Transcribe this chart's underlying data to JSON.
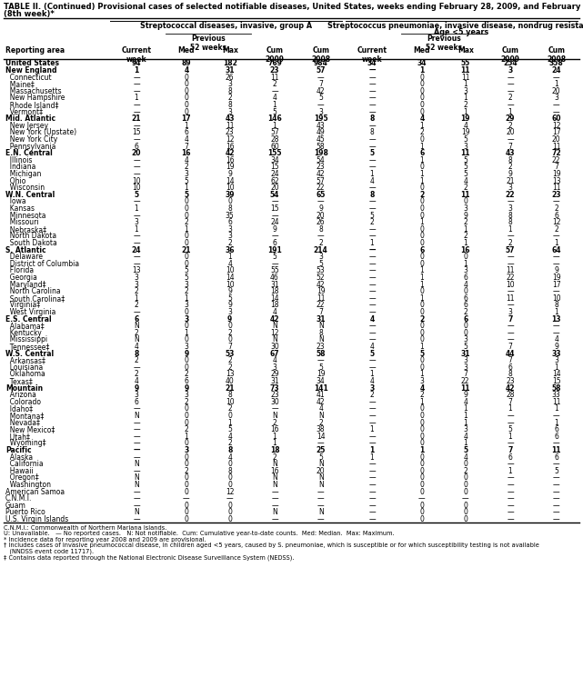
{
  "title_line1": "TABLE II. (Continued) Provisional cases of selected notifiable diseases, United States, weeks ending February 28, 2009, and February 23, 2008",
  "title_line2": "(8th week)*",
  "col_group1": "Streptococcal diseases, invasive, group A",
  "col_group2_line1": "Streptococcus pneumoniae, invasive disease, nondrug resistant†",
  "col_group2_line2": "Age <5 years",
  "footnote1": "C.N.M.I.: Commonwealth of Northern Mariana Islands.",
  "footnote2": "U: Unavailable.   — No reported cases.   N: Not notifiable.  Cum: Cumulative year-to-date counts.  Med: Median.  Max: Maximum.",
  "footnote3": "* Incidence data for reporting year 2008 and 2009 are provisional.",
  "footnote4a": "† Includes cases of invasive pneumococcal disease, in children aged <5 years, caused by S. pneumoniae, which is susceptible or for which susceptibility testing is not available",
  "footnote4b": "   (NNDSS event code 11717).",
  "footnote5": "‡ Contains data reported through the National Electronic Disease Surveillance System (NEDSS).",
  "rows": [
    [
      "United States",
      "94",
      "89",
      "182",
      "769",
      "984",
      "34",
      "34",
      "55",
      "254",
      "358"
    ],
    [
      "New England",
      "1",
      "4",
      "31",
      "23",
      "57",
      "—",
      "1",
      "11",
      "3",
      "24"
    ],
    [
      "  Connecticut",
      "—",
      "0",
      "26",
      "11",
      "—",
      "—",
      "0",
      "11",
      "—",
      "—"
    ],
    [
      "  Maine‡",
      "—",
      "0",
      "3",
      "2",
      "7",
      "—",
      "0",
      "1",
      "—",
      "1"
    ],
    [
      "  Massachusetts",
      "—",
      "0",
      "8",
      "—",
      "42",
      "—",
      "0",
      "3",
      "—",
      "20"
    ],
    [
      "  New Hampshire",
      "1",
      "0",
      "2",
      "4",
      "5",
      "—",
      "0",
      "1",
      "2",
      "3"
    ],
    [
      "  Rhode Island‡",
      "—",
      "0",
      "8",
      "1",
      "—",
      "—",
      "0",
      "2",
      "—",
      "—"
    ],
    [
      "  Vermont‡",
      "—",
      "0",
      "3",
      "5",
      "3",
      "—",
      "0",
      "1",
      "1",
      "—"
    ],
    [
      "Mid. Atlantic",
      "21",
      "17",
      "43",
      "146",
      "195",
      "8",
      "4",
      "19",
      "29",
      "60"
    ],
    [
      "  New Jersey",
      "—",
      "1",
      "11",
      "1",
      "43",
      "—",
      "1",
      "4",
      "2",
      "12"
    ],
    [
      "  New York (Upstate)",
      "15",
      "6",
      "23",
      "57",
      "49",
      "8",
      "2",
      "19",
      "20",
      "17"
    ],
    [
      "  New York City",
      "—",
      "4",
      "12",
      "28",
      "45",
      "—",
      "0",
      "5",
      "—",
      "20"
    ],
    [
      "  Pennsylvania",
      "6",
      "7",
      "16",
      "60",
      "58",
      "—",
      "1",
      "3",
      "7",
      "11"
    ],
    [
      "E.N. Central",
      "20",
      "16",
      "42",
      "155",
      "198",
      "5",
      "6",
      "11",
      "43",
      "72"
    ],
    [
      "  Illinois",
      "—",
      "4",
      "16",
      "34",
      "54",
      "—",
      "1",
      "5",
      "8",
      "22"
    ],
    [
      "  Indiana",
      "—",
      "2",
      "19",
      "15",
      "23",
      "—",
      "0",
      "5",
      "2",
      "7"
    ],
    [
      "  Michigan",
      "—",
      "3",
      "9",
      "24",
      "42",
      "1",
      "1",
      "5",
      "9",
      "19"
    ],
    [
      "  Ohio",
      "10",
      "5",
      "14",
      "62",
      "57",
      "4",
      "1",
      "4",
      "21",
      "13"
    ],
    [
      "  Wisconsin",
      "10",
      "1",
      "10",
      "20",
      "22",
      "—",
      "0",
      "2",
      "3",
      "11"
    ],
    [
      "W.N. Central",
      "5",
      "5",
      "39",
      "54",
      "65",
      "8",
      "2",
      "11",
      "22",
      "23"
    ],
    [
      "  Iowa",
      "—",
      "0",
      "0",
      "—",
      "—",
      "—",
      "0",
      "0",
      "—",
      "—"
    ],
    [
      "  Kansas",
      "1",
      "0",
      "8",
      "15",
      "9",
      "—",
      "0",
      "3",
      "3",
      "2"
    ],
    [
      "  Minnesota",
      "—",
      "0",
      "35",
      "—",
      "20",
      "5",
      "0",
      "9",
      "8",
      "6"
    ],
    [
      "  Missouri",
      "3",
      "2",
      "6",
      "24",
      "26",
      "2",
      "1",
      "2",
      "8",
      "12"
    ],
    [
      "  Nebraska‡",
      "1",
      "1",
      "3",
      "9",
      "8",
      "—",
      "0",
      "1",
      "1",
      "2"
    ],
    [
      "  North Dakota",
      "—",
      "0",
      "3",
      "—",
      "—",
      "—",
      "0",
      "2",
      "—",
      "—"
    ],
    [
      "  South Dakota",
      "—",
      "0",
      "2",
      "6",
      "2",
      "1",
      "0",
      "1",
      "2",
      "1"
    ],
    [
      "S. Atlantic",
      "24",
      "21",
      "36",
      "191",
      "214",
      "—",
      "6",
      "16",
      "57",
      "64"
    ],
    [
      "  Delaware",
      "—",
      "0",
      "1",
      "5",
      "3",
      "—",
      "0",
      "0",
      "—",
      "—"
    ],
    [
      "  District of Columbia",
      "—",
      "0",
      "4",
      "—",
      "5",
      "—",
      "0",
      "1",
      "—",
      "—"
    ],
    [
      "  Florida",
      "13",
      "5",
      "10",
      "55",
      "53",
      "—",
      "1",
      "3",
      "11",
      "9"
    ],
    [
      "  Georgia",
      "3",
      "5",
      "14",
      "46",
      "52",
      "—",
      "1",
      "6",
      "22",
      "19"
    ],
    [
      "  Maryland‡",
      "3",
      "3",
      "10",
      "31",
      "42",
      "—",
      "1",
      "4",
      "10",
      "17"
    ],
    [
      "  North Carolina",
      "2",
      "2",
      "9",
      "18",
      "19",
      "—",
      "0",
      "0",
      "—",
      "—"
    ],
    [
      "  South Carolina‡",
      "1",
      "1",
      "5",
      "14",
      "11",
      "—",
      "1",
      "6",
      "11",
      "10"
    ],
    [
      "  Virginia‡",
      "2",
      "3",
      "9",
      "18",
      "22",
      "—",
      "0",
      "6",
      "—",
      "8"
    ],
    [
      "  West Virginia",
      "—",
      "0",
      "3",
      "4",
      "7",
      "—",
      "0",
      "2",
      "3",
      "1"
    ],
    [
      "E.S. Central",
      "6",
      "3",
      "9",
      "42",
      "31",
      "4",
      "2",
      "6",
      "7",
      "13"
    ],
    [
      "  Alabama‡",
      "N",
      "0",
      "0",
      "N",
      "N",
      "—",
      "0",
      "0",
      "—",
      "—"
    ],
    [
      "  Kentucky",
      "2",
      "1",
      "2",
      "12",
      "8",
      "—",
      "0",
      "0",
      "—",
      "—"
    ],
    [
      "  Mississippi",
      "N",
      "0",
      "0",
      "N",
      "N",
      "—",
      "0",
      "3",
      "—",
      "4"
    ],
    [
      "  Tennessee‡",
      "4",
      "3",
      "7",
      "30",
      "23",
      "4",
      "1",
      "5",
      "7",
      "9"
    ],
    [
      "W.S. Central",
      "8",
      "9",
      "53",
      "67",
      "58",
      "5",
      "5",
      "31",
      "44",
      "33"
    ],
    [
      "  Arkansas‡",
      "2",
      "0",
      "2",
      "4",
      "—",
      "—",
      "0",
      "3",
      "7",
      "3"
    ],
    [
      "  Louisiana",
      "—",
      "0",
      "2",
      "3",
      "5",
      "—",
      "0",
      "3",
      "6",
      "1"
    ],
    [
      "  Oklahoma",
      "2",
      "2",
      "13",
      "29",
      "19",
      "1",
      "1",
      "7",
      "8",
      "14"
    ],
    [
      "  Texas‡",
      "4",
      "6",
      "40",
      "31",
      "34",
      "4",
      "3",
      "22",
      "23",
      "15"
    ],
    [
      "Mountain",
      "9",
      "9",
      "21",
      "73",
      "141",
      "3",
      "4",
      "11",
      "42",
      "58"
    ],
    [
      "  Arizona",
      "3",
      "3",
      "8",
      "23",
      "41",
      "2",
      "2",
      "9",
      "28",
      "33"
    ],
    [
      "  Colorado",
      "6",
      "2",
      "10",
      "30",
      "42",
      "—",
      "1",
      "4",
      "7",
      "11"
    ],
    [
      "  Idaho‡",
      "—",
      "0",
      "2",
      "—",
      "4",
      "—",
      "0",
      "1",
      "1",
      "1"
    ],
    [
      "  Montana‡",
      "N",
      "0",
      "0",
      "N",
      "N",
      "—",
      "0",
      "1",
      "—",
      "—"
    ],
    [
      "  Nevada‡",
      "—",
      "0",
      "1",
      "2",
      "2",
      "—",
      "0",
      "1",
      "—",
      "1"
    ],
    [
      "  New Mexico‡",
      "—",
      "2",
      "5",
      "16",
      "38",
      "1",
      "0",
      "3",
      "5",
      "6"
    ],
    [
      "  Utah‡",
      "—",
      "1",
      "4",
      "1",
      "14",
      "—",
      "0",
      "4",
      "1",
      "6"
    ],
    [
      "  Wyoming‡",
      "—",
      "0",
      "2",
      "1",
      "—",
      "—",
      "0",
      "1",
      "—",
      "—"
    ],
    [
      "Pacific",
      "—",
      "3",
      "8",
      "18",
      "25",
      "1",
      "1",
      "5",
      "7",
      "11"
    ],
    [
      "  Alaska",
      "—",
      "0",
      "4",
      "2",
      "5",
      "1",
      "0",
      "4",
      "6",
      "6"
    ],
    [
      "  California",
      "N",
      "0",
      "0",
      "N",
      "N",
      "—",
      "0",
      "0",
      "—",
      "—"
    ],
    [
      "  Hawaii",
      "—",
      "2",
      "8",
      "16",
      "20",
      "—",
      "0",
      "2",
      "1",
      "5"
    ],
    [
      "  Oregon‡",
      "N",
      "0",
      "0",
      "N",
      "N",
      "—",
      "0",
      "0",
      "—",
      "—"
    ],
    [
      "  Washington",
      "N",
      "0",
      "0",
      "N",
      "N",
      "—",
      "0",
      "0",
      "—",
      "—"
    ],
    [
      "American Samoa",
      "—",
      "0",
      "12",
      "—",
      "—",
      "—",
      "0",
      "0",
      "—",
      "—"
    ],
    [
      "C.N.M.I.",
      "—",
      "—",
      "—",
      "—",
      "—",
      "—",
      "—",
      "—",
      "—",
      "—"
    ],
    [
      "Guam",
      "—",
      "0",
      "0",
      "—",
      "—",
      "—",
      "0",
      "0",
      "—",
      "—"
    ],
    [
      "Puerto Rico",
      "N",
      "0",
      "0",
      "N",
      "N",
      "—",
      "0",
      "0",
      "—",
      "—"
    ],
    [
      "U.S. Virgin Islands",
      "—",
      "0",
      "0",
      "—",
      "—",
      "—",
      "0",
      "0",
      "—",
      "—"
    ]
  ],
  "bold_rows": [
    0,
    1,
    8,
    13,
    19,
    27,
    37,
    42,
    47,
    56
  ],
  "title_fs": 6.0,
  "header_fs": 5.8,
  "subheader_fs": 5.5,
  "data_fs": 5.5,
  "footnote_fs": 4.8
}
